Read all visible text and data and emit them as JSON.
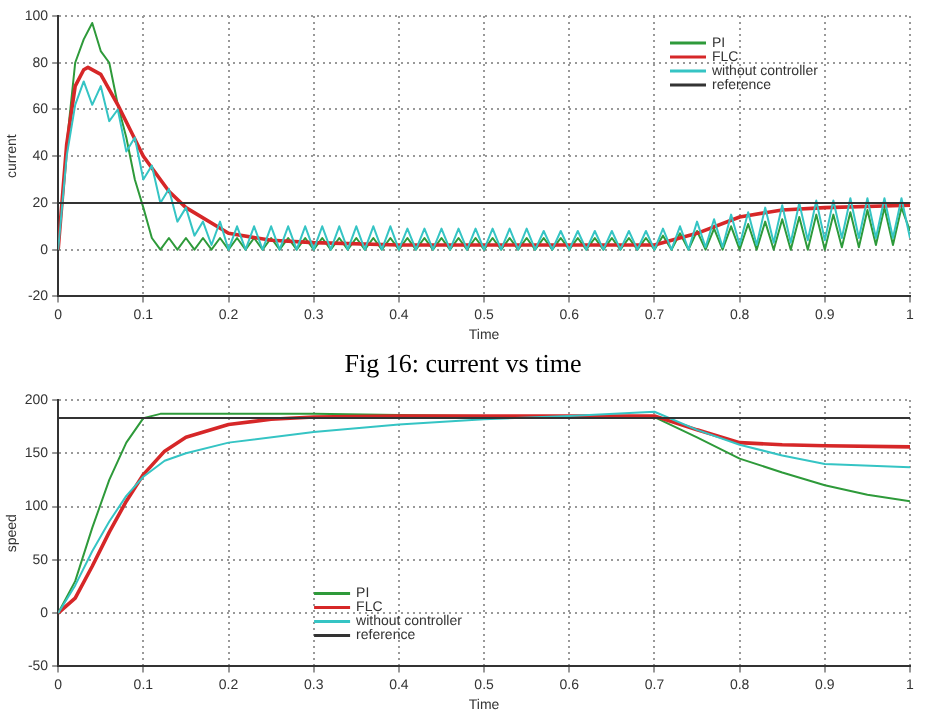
{
  "chart_data": [
    {
      "type": "line",
      "xlabel": "Time",
      "ylabel": "current",
      "annotations": [
        "Fig 16: current vs time"
      ],
      "xlim": [
        0,
        1
      ],
      "ylim": [
        -20,
        100
      ],
      "xticks": [
        0,
        0.1,
        0.2,
        0.3,
        0.4,
        0.5,
        0.6,
        0.7,
        0.8,
        0.9,
        1
      ],
      "yticks": [
        -20,
        0,
        20,
        40,
        60,
        80,
        100
      ],
      "grid": true,
      "legend": "top right",
      "marker": "none",
      "line_style": "solid",
      "x": [
        0,
        0.01,
        0.02,
        0.03,
        0.04,
        0.05,
        0.06,
        0.07,
        0.08,
        0.09,
        0.1,
        0.11,
        0.12,
        0.13,
        0.14,
        0.15,
        0.16,
        0.17,
        0.18,
        0.19,
        0.2,
        0.21,
        0.22,
        0.23,
        0.24,
        0.25,
        0.26,
        0.27,
        0.28,
        0.29,
        0.3,
        0.31,
        0.32,
        0.33,
        0.34,
        0.35,
        0.36,
        0.37,
        0.38,
        0.39,
        0.4,
        0.41,
        0.42,
        0.43,
        0.44,
        0.45,
        0.46,
        0.47,
        0.48,
        0.49,
        0.5,
        0.51,
        0.52,
        0.53,
        0.54,
        0.55,
        0.56,
        0.57,
        0.58,
        0.59,
        0.6,
        0.61,
        0.62,
        0.63,
        0.64,
        0.65,
        0.66,
        0.67,
        0.68,
        0.69,
        0.7,
        0.71,
        0.72,
        0.73,
        0.74,
        0.75,
        0.76,
        0.77,
        0.78,
        0.79,
        0.8,
        0.81,
        0.82,
        0.83,
        0.84,
        0.85,
        0.86,
        0.87,
        0.88,
        0.89,
        0.9,
        0.91,
        0.92,
        0.93,
        0.94,
        0.95,
        0.96,
        0.97,
        0.98,
        0.99,
        1
      ],
      "series": [
        {
          "name": "PI",
          "color": "#2e9a3a",
          "values": [
            0,
            45,
            80,
            90,
            97,
            85,
            80,
            62,
            48,
            30,
            18,
            5,
            0,
            5,
            0,
            5,
            0,
            5,
            0,
            5,
            0,
            5,
            0,
            5,
            0,
            5,
            0,
            5,
            0,
            5,
            0,
            5,
            0,
            5,
            0,
            5,
            0,
            5,
            0,
            5,
            0,
            5,
            0,
            5,
            0,
            5,
            0,
            5,
            0,
            5,
            0,
            5,
            0,
            5,
            0,
            5,
            0,
            5,
            0,
            5,
            0,
            5,
            0,
            5,
            0,
            5,
            0,
            5,
            0,
            5,
            0,
            6,
            0,
            7,
            0,
            8,
            0,
            9,
            0,
            10,
            0,
            11,
            0,
            12,
            0,
            13,
            0,
            14,
            0,
            15,
            0,
            15,
            1,
            16,
            1,
            17,
            2,
            18,
            2,
            18,
            8
          ]
        },
        {
          "name": "FLC",
          "color": "#d62728",
          "x": [
            0,
            0.01,
            0.02,
            0.03,
            0.035,
            0.05,
            0.07,
            0.1,
            0.13,
            0.15,
            0.2,
            0.25,
            0.3,
            0.4,
            0.5,
            0.6,
            0.7,
            0.75,
            0.8,
            0.85,
            0.9,
            1
          ],
          "values": [
            0,
            45,
            70,
            77,
            78,
            75,
            62,
            40,
            25,
            18,
            7,
            4,
            3,
            2,
            2,
            2,
            2,
            7,
            14,
            17,
            18,
            19
          ]
        },
        {
          "name": "without controller",
          "color": "#35c4c4",
          "values": [
            0,
            40,
            62,
            72,
            62,
            70,
            55,
            60,
            42,
            48,
            30,
            36,
            20,
            26,
            12,
            18,
            6,
            12,
            2,
            12,
            0,
            10,
            0,
            10,
            0,
            10,
            0,
            10,
            0,
            10,
            0,
            10,
            0,
            10,
            0,
            10,
            0,
            10,
            0,
            10,
            0,
            9,
            0,
            9,
            0,
            9,
            0,
            9,
            0,
            9,
            0,
            9,
            0,
            9,
            0,
            9,
            0,
            8,
            0,
            8,
            0,
            8,
            0,
            8,
            0,
            8,
            0,
            8,
            0,
            8,
            0,
            9,
            0,
            10,
            0,
            12,
            1,
            13,
            1,
            15,
            2,
            16,
            2,
            18,
            3,
            19,
            3,
            20,
            4,
            21,
            4,
            21,
            5,
            22,
            5,
            22,
            5,
            22,
            5,
            22,
            5
          ]
        },
        {
          "name": "reference",
          "color": "#333333",
          "x": [
            0,
            1
          ],
          "values": [
            20,
            20
          ]
        }
      ]
    },
    {
      "type": "line",
      "xlabel": "Time",
      "ylabel": "speed",
      "xlim": [
        0,
        1
      ],
      "ylim": [
        -50,
        200
      ],
      "xticks": [
        0,
        0.1,
        0.2,
        0.3,
        0.4,
        0.5,
        0.6,
        0.7,
        0.8,
        0.9,
        1
      ],
      "yticks": [
        -50,
        0,
        50,
        100,
        150,
        200
      ],
      "grid": true,
      "legend": "bottom",
      "marker": "none",
      "line_style": "solid",
      "series": [
        {
          "name": "PI",
          "color": "#2e9a3a",
          "x": [
            0,
            0.02,
            0.04,
            0.06,
            0.08,
            0.1,
            0.12,
            0.2,
            0.3,
            0.4,
            0.5,
            0.6,
            0.7,
            0.75,
            0.8,
            0.85,
            0.9,
            0.95,
            1
          ],
          "values": [
            0,
            30,
            80,
            125,
            160,
            183,
            187,
            187,
            187,
            186,
            185,
            185,
            184,
            165,
            145,
            132,
            120,
            111,
            105
          ]
        },
        {
          "name": "FLC",
          "color": "#d62728",
          "x": [
            0,
            0.02,
            0.04,
            0.06,
            0.08,
            0.1,
            0.125,
            0.15,
            0.2,
            0.25,
            0.3,
            0.4,
            0.5,
            0.6,
            0.7,
            0.75,
            0.8,
            0.85,
            0.9,
            1
          ],
          "values": [
            0,
            14,
            44,
            76,
            105,
            130,
            152,
            165,
            177,
            182,
            184,
            185,
            185,
            185,
            185,
            172,
            160,
            158,
            157,
            156
          ]
        },
        {
          "name": "without controller",
          "color": "#35c4c4",
          "x": [
            0,
            0.02,
            0.04,
            0.06,
            0.08,
            0.1,
            0.125,
            0.15,
            0.2,
            0.3,
            0.4,
            0.5,
            0.6,
            0.7,
            0.75,
            0.8,
            0.85,
            0.9,
            1
          ],
          "values": [
            0,
            26,
            58,
            86,
            110,
            128,
            143,
            150,
            160,
            170,
            177,
            182,
            185,
            189,
            172,
            158,
            148,
            140,
            137
          ]
        },
        {
          "name": "reference",
          "color": "#333333",
          "x": [
            0,
            1
          ],
          "values": [
            183,
            183
          ]
        }
      ]
    }
  ]
}
